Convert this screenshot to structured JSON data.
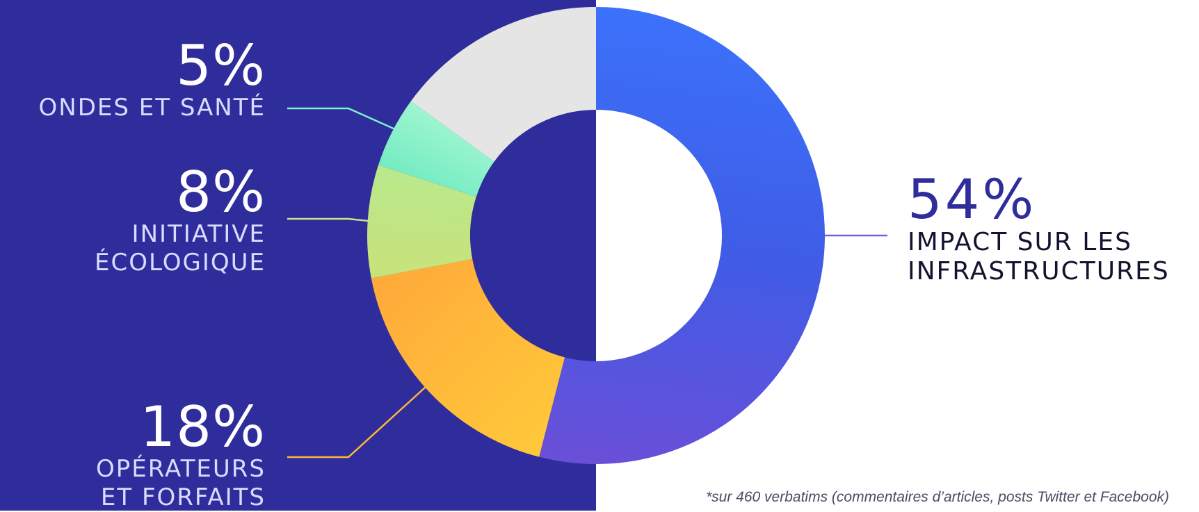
{
  "chart_data": {
    "type": "pie",
    "style": "donut",
    "slices": [
      {
        "label": "IMPACT SUR LES INFRASTRUCTURES",
        "value": 54,
        "value_label": "54%",
        "colors": [
          "#3c71fb",
          "#3f5ce6",
          "#6a4fd8"
        ]
      },
      {
        "label": "OPÉRATEURS ET FORFAITS",
        "value": 18,
        "value_label": "18%",
        "colors": [
          "#ffc93a",
          "#ffa93a"
        ]
      },
      {
        "label": "INITIATIVE ÉCOLOGIQUE",
        "value": 8,
        "value_label": "8%",
        "colors": [
          "#c9e27a",
          "#b9e98c"
        ]
      },
      {
        "label": "ONDES ET SANTÉ",
        "value": 5,
        "value_label": "5%",
        "colors": [
          "#74ebc2",
          "#9ef6cf"
        ]
      },
      {
        "label": "",
        "value": 15,
        "value_label": "",
        "colors": [
          "#e5e5e5",
          "#e5e5e5"
        ]
      }
    ],
    "legend": "none"
  },
  "labels": {
    "ondes": {
      "pct": "5%",
      "line1": "ONDES ET SANTÉ",
      "line_color": "#7df0cb"
    },
    "ecologique": {
      "pct": "8%",
      "line1": "INITIATIVE",
      "line2": "ÉCOLOGIQUE",
      "line_color": "#c7e58a"
    },
    "operateurs": {
      "pct": "18%",
      "line1": "OPÉRATEURS",
      "line2": "ET FORFAITS",
      "line_color": "#ffb63c"
    },
    "infrastructures": {
      "pct": "54%",
      "line1": "IMPACT SUR LES",
      "line2": "INFRASTRUCTURES",
      "line_color": "#6a63dc"
    }
  },
  "colors": {
    "panel_bg": "#2f2d9b",
    "page_bg": "#ffffff"
  },
  "footnote": "*sur 460 verbatims (commentaires d’articles, posts Twitter et Facebook)"
}
